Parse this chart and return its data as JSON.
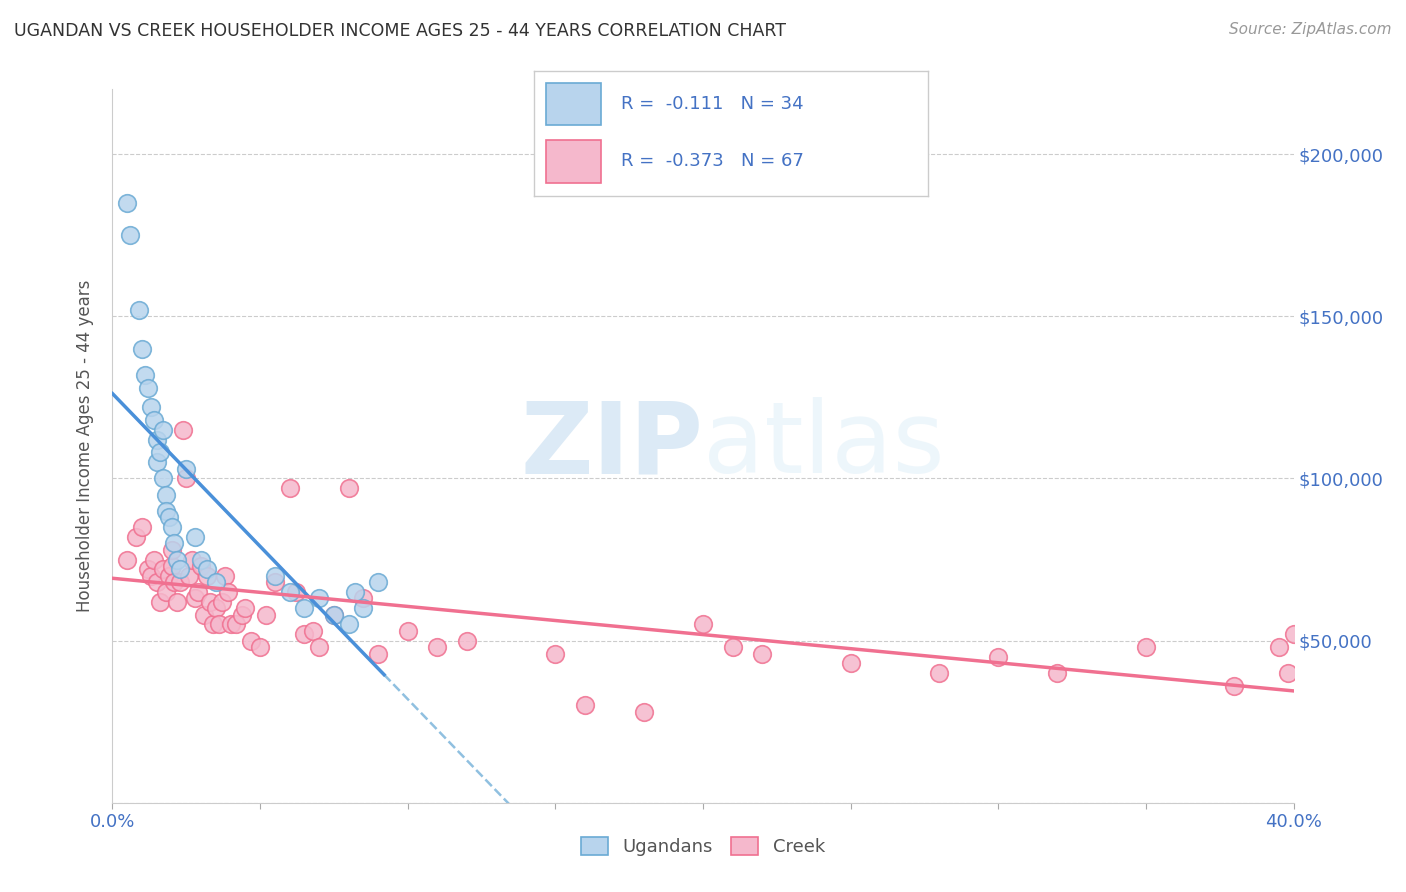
{
  "title": "UGANDAN VS CREEK HOUSEHOLDER INCOME AGES 25 - 44 YEARS CORRELATION CHART",
  "source": "Source: ZipAtlas.com",
  "ylabel": "Householder Income Ages 25 - 44 years",
  "yticks": [
    0,
    50000,
    100000,
    150000,
    200000
  ],
  "ytick_labels": [
    "",
    "$50,000",
    "$100,000",
    "$150,000",
    "$200,000"
  ],
  "xlim": [
    0.0,
    0.4
  ],
  "ylim": [
    0,
    220000
  ],
  "legend_r_ugandan": "-0.111",
  "legend_n_ugandan": "34",
  "legend_r_creek": "-0.373",
  "legend_n_creek": "67",
  "color_ugandan_fill": "#b8d4ed",
  "color_ugandan_edge": "#6aaad4",
  "color_creek_fill": "#f5b8cc",
  "color_creek_edge": "#f07090",
  "color_line_ugandan": "#4a90d9",
  "color_line_creek": "#f07090",
  "color_dashed": "#90c0e0",
  "color_text_blue": "#4472c4",
  "watermark_color": "#dceef8",
  "ugandan_x": [
    0.005,
    0.006,
    0.009,
    0.01,
    0.011,
    0.012,
    0.013,
    0.014,
    0.015,
    0.015,
    0.016,
    0.017,
    0.017,
    0.018,
    0.018,
    0.019,
    0.02,
    0.021,
    0.022,
    0.023,
    0.025,
    0.028,
    0.03,
    0.032,
    0.035,
    0.055,
    0.06,
    0.065,
    0.07,
    0.075,
    0.08,
    0.082,
    0.085,
    0.09
  ],
  "ugandan_y": [
    185000,
    175000,
    152000,
    140000,
    132000,
    128000,
    122000,
    118000,
    112000,
    105000,
    108000,
    115000,
    100000,
    95000,
    90000,
    88000,
    85000,
    80000,
    75000,
    72000,
    103000,
    82000,
    75000,
    72000,
    68000,
    70000,
    65000,
    60000,
    63000,
    58000,
    55000,
    65000,
    60000,
    68000
  ],
  "creek_x": [
    0.005,
    0.008,
    0.01,
    0.012,
    0.013,
    0.014,
    0.015,
    0.016,
    0.017,
    0.018,
    0.019,
    0.02,
    0.02,
    0.021,
    0.022,
    0.023,
    0.024,
    0.025,
    0.026,
    0.027,
    0.028,
    0.029,
    0.03,
    0.031,
    0.032,
    0.033,
    0.034,
    0.035,
    0.036,
    0.037,
    0.038,
    0.039,
    0.04,
    0.042,
    0.044,
    0.045,
    0.047,
    0.05,
    0.052,
    0.055,
    0.06,
    0.062,
    0.065,
    0.068,
    0.07,
    0.075,
    0.08,
    0.085,
    0.09,
    0.1,
    0.11,
    0.12,
    0.15,
    0.16,
    0.18,
    0.2,
    0.21,
    0.22,
    0.25,
    0.28,
    0.3,
    0.32,
    0.35,
    0.38,
    0.395,
    0.398,
    0.4
  ],
  "creek_y": [
    75000,
    82000,
    85000,
    72000,
    70000,
    75000,
    68000,
    62000,
    72000,
    65000,
    70000,
    73000,
    78000,
    68000,
    62000,
    68000,
    115000,
    100000,
    70000,
    75000,
    63000,
    65000,
    73000,
    58000,
    70000,
    62000,
    55000,
    60000,
    55000,
    62000,
    70000,
    65000,
    55000,
    55000,
    58000,
    60000,
    50000,
    48000,
    58000,
    68000,
    97000,
    65000,
    52000,
    53000,
    48000,
    58000,
    97000,
    63000,
    46000,
    53000,
    48000,
    50000,
    46000,
    30000,
    28000,
    55000,
    48000,
    46000,
    43000,
    40000,
    45000,
    40000,
    48000,
    36000,
    48000,
    40000,
    52000
  ],
  "ugandan_line_x0": 0.0,
  "ugandan_line_x1": 0.092,
  "creek_line_x0": 0.0,
  "creek_line_x1": 0.4,
  "dashed_line_x0": 0.092,
  "dashed_line_x1": 0.4
}
